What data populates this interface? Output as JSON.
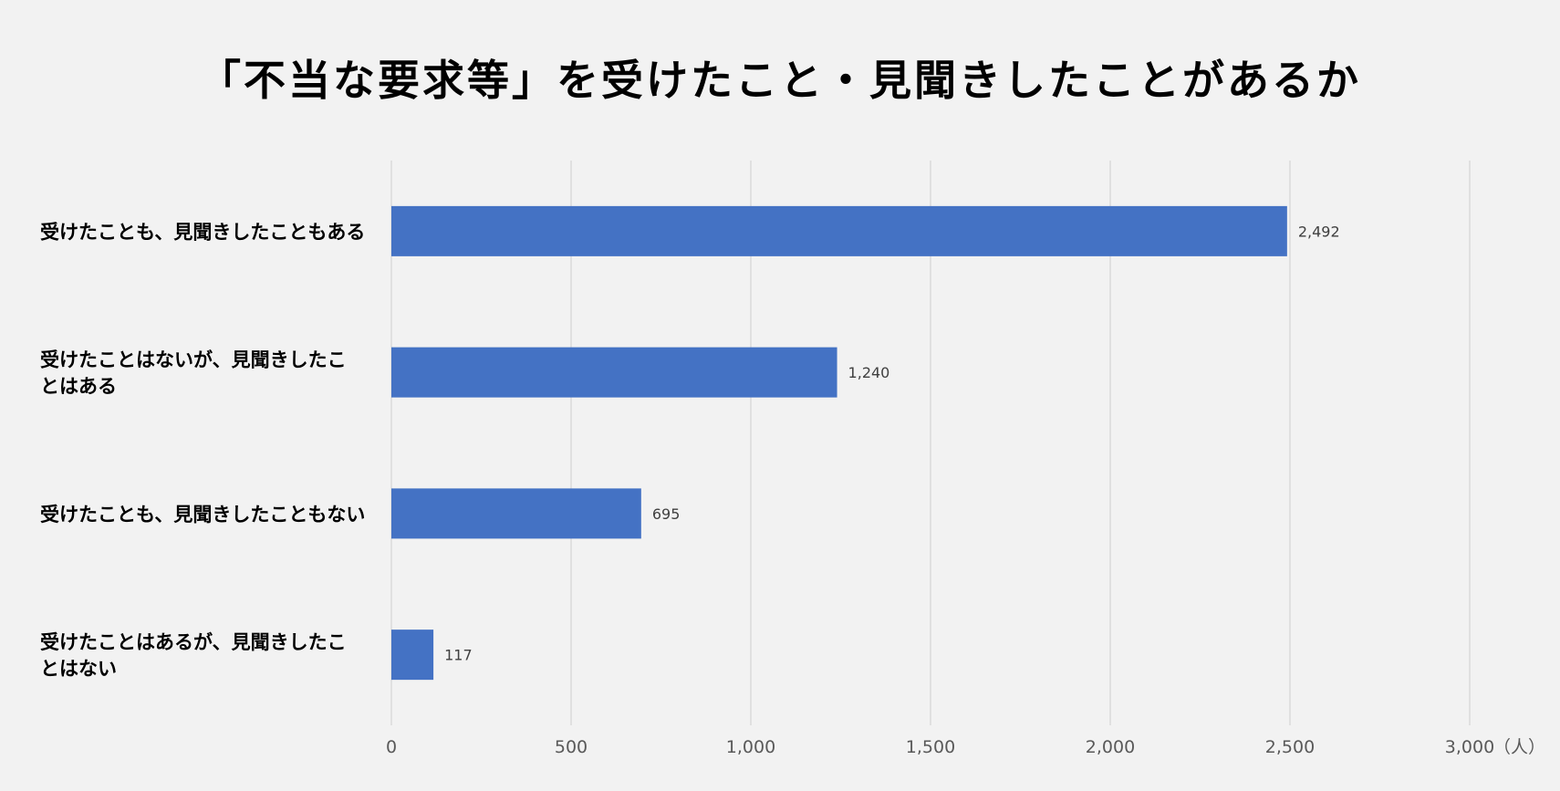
{
  "chart_data": {
    "type": "bar",
    "orientation": "horizontal",
    "title": "「不当な要求等」を受けたこと・見聞きしたことがあるか",
    "categories": [
      [
        "受けたことも、見聞きしたこともある"
      ],
      [
        "受けたことはないが、見聞きしたこ",
        "とはある"
      ],
      [
        "受けたことも、見聞きしたこともない"
      ],
      [
        "受けたことはあるが、見聞きしたこ",
        "とはない"
      ]
    ],
    "values": [
      2492,
      1240,
      695,
      117
    ],
    "value_labels": [
      "2,492",
      "1,240",
      "695",
      "117"
    ],
    "xlim": [
      0,
      3000
    ],
    "xticks": [
      0,
      500,
      1000,
      1500,
      2000,
      2500,
      3000
    ],
    "xtick_labels": [
      "0",
      "500",
      "1,000",
      "1,500",
      "2,000",
      "2,500",
      "3,000"
    ],
    "xunit": "（人）",
    "grid": true,
    "legend": "none",
    "colors": {
      "bar": "#4472c4",
      "grid": "#d9d9d9",
      "background": "#f2f2f2"
    }
  }
}
